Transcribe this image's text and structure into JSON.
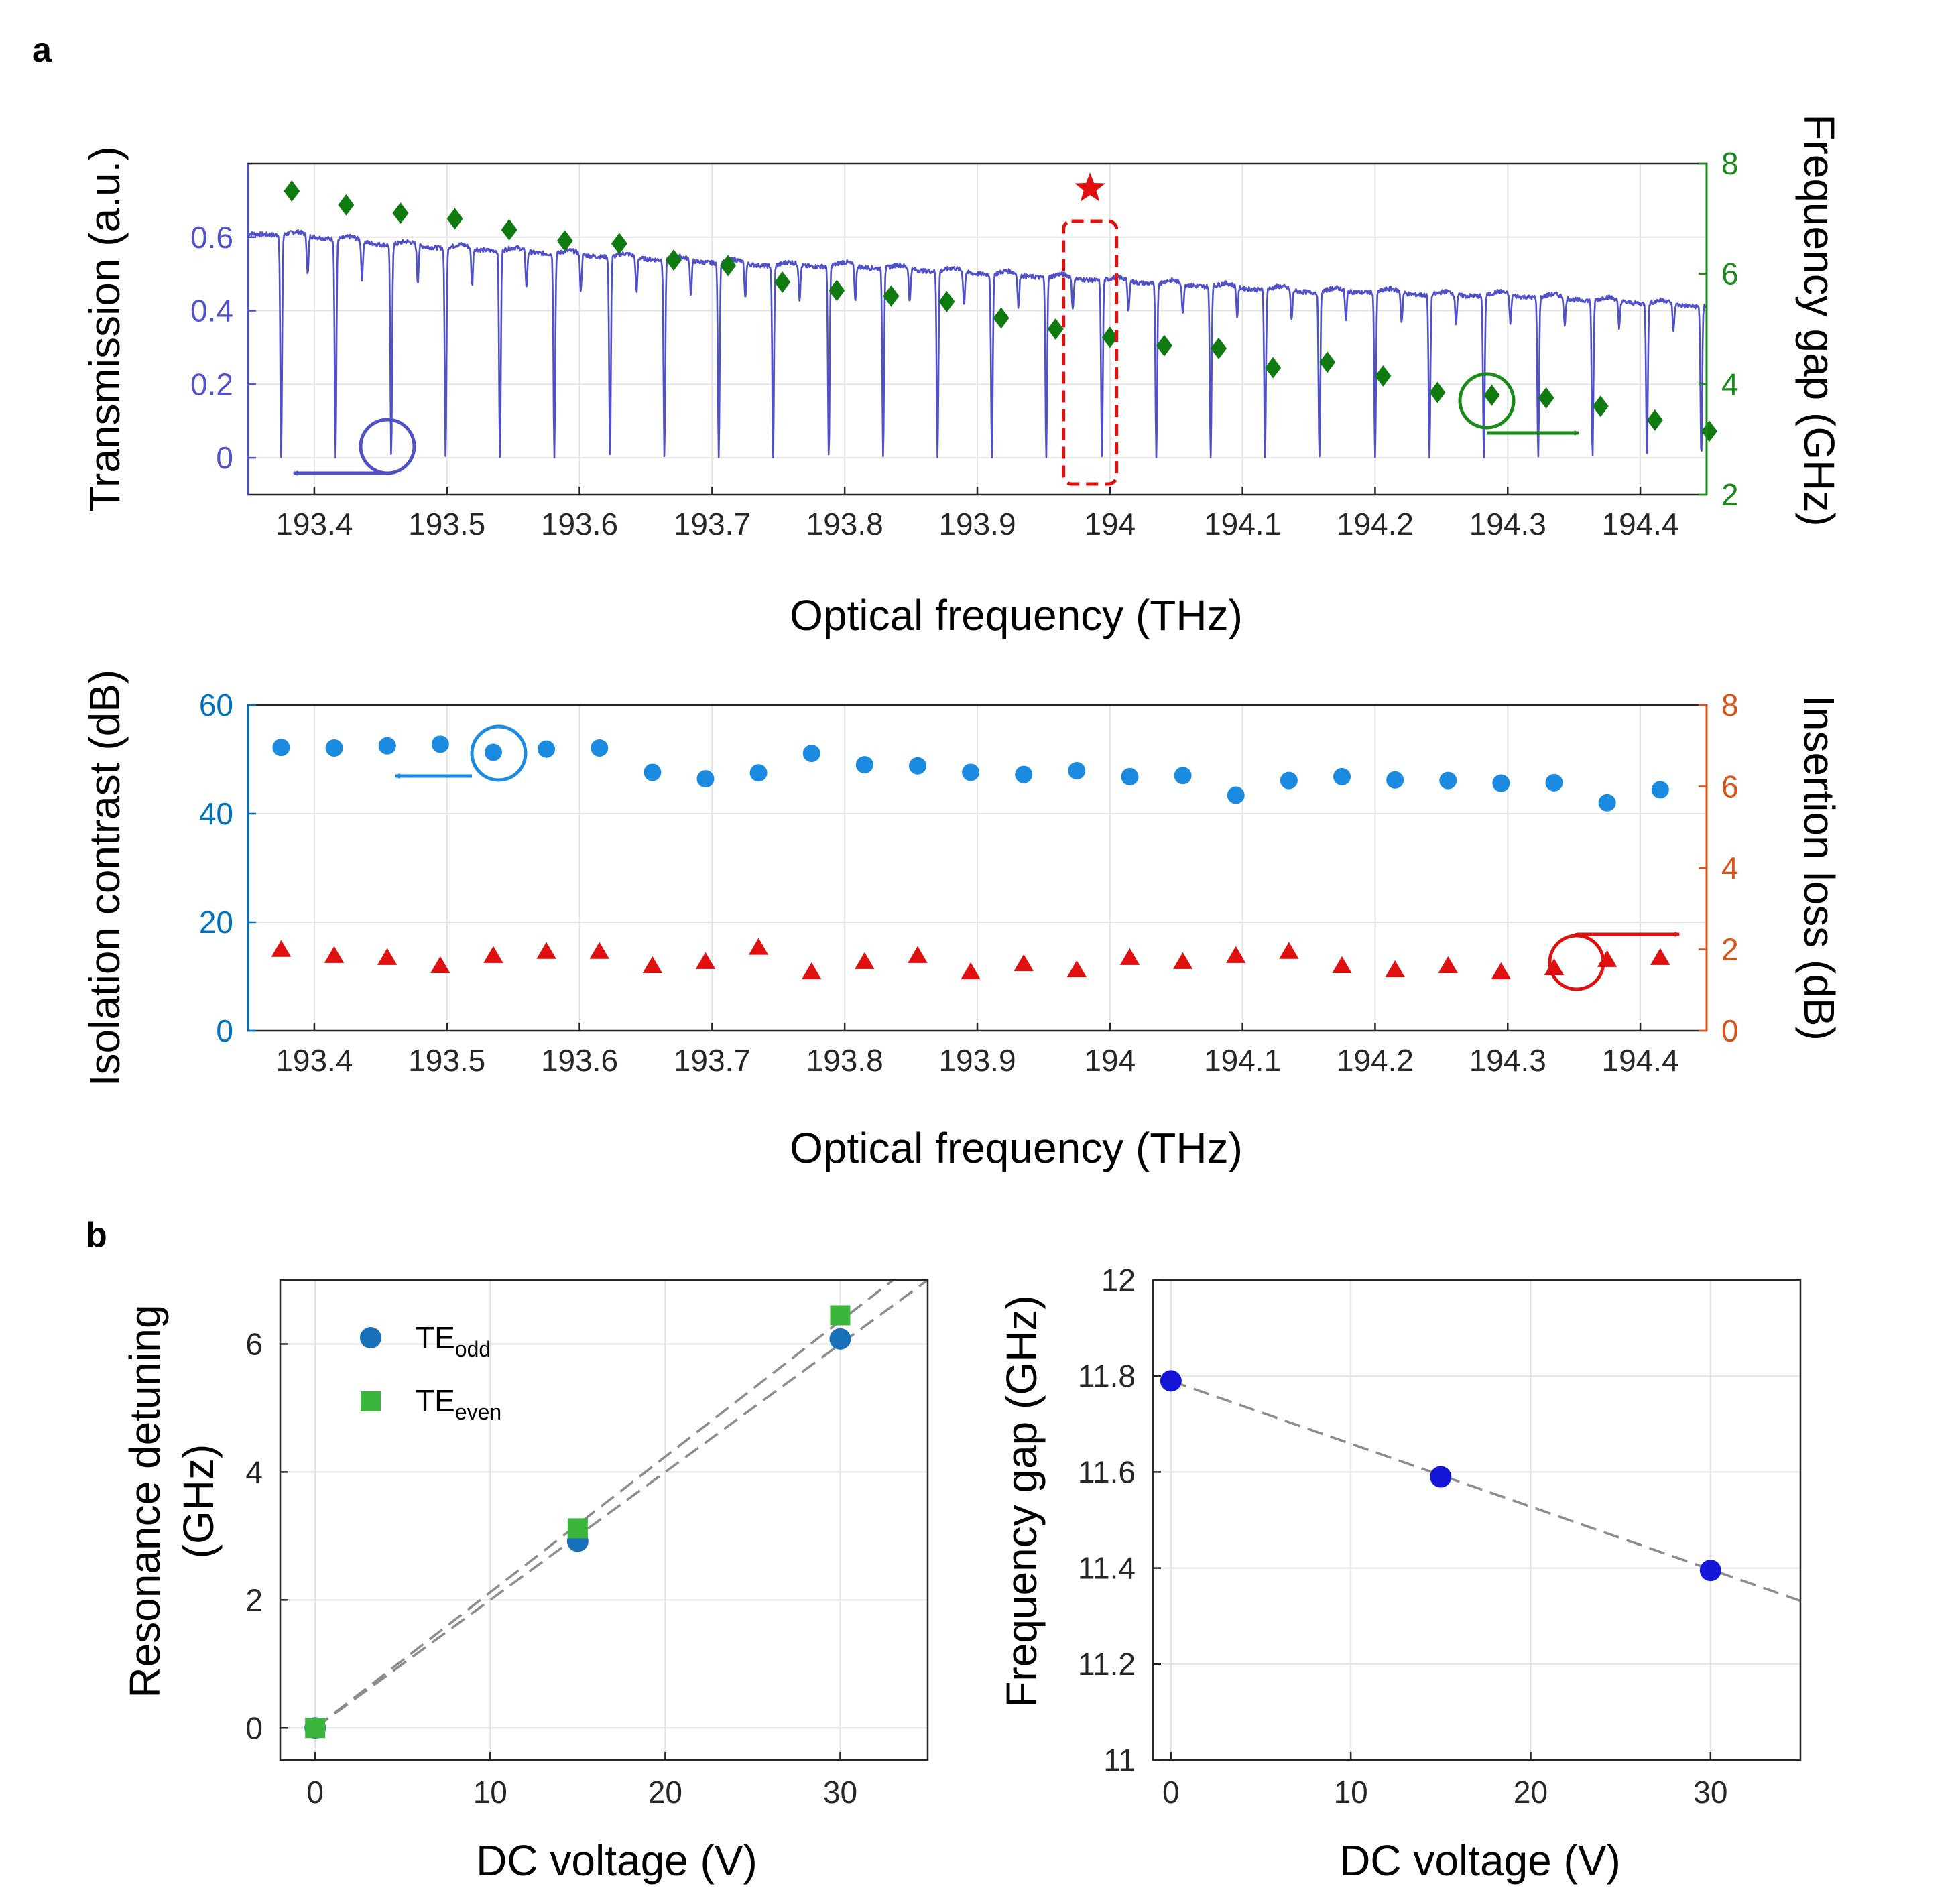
{
  "figure": {
    "panel_a_label": "a",
    "panel_b_label": "b"
  },
  "colors": {
    "transmission": "#5050c8",
    "freq_gap": "#0f7a0f",
    "freq_gap_axis": "#1a8a1a",
    "isolation": "#1a8be0",
    "isolation_axis": "#0072bd",
    "insertion": "#e01010",
    "insertion_axis": "#d95319",
    "te_odd": "#1770b8",
    "te_even": "#3bb53b",
    "gap_b": "#1515d8",
    "fit": "#8c8c8c",
    "star": "#e01010"
  },
  "chart_data": [
    {
      "id": "a-top",
      "type": "line",
      "title": "",
      "xlabel": "Optical frequency (THz)",
      "ylabel_left": "Transmission (a.u.)",
      "ylabel_right": "Frequency gap (GHz)",
      "xlim": [
        193.35,
        194.45
      ],
      "ylim_left": [
        -0.1,
        0.8
      ],
      "ylim_right": [
        2,
        8
      ],
      "xticks": [
        193.4,
        193.5,
        193.6,
        193.7,
        193.8,
        193.9,
        194.0,
        194.1,
        194.2,
        194.3,
        194.4
      ],
      "xtick_labels": [
        "193.4",
        "193.5",
        "193.6",
        "193.7",
        "193.8",
        "193.9",
        "194",
        "194.1",
        "194.2",
        "194.3",
        "194.4"
      ],
      "yticks_left": [
        0,
        0.2,
        0.4,
        0.6
      ],
      "ytick_labels_left": [
        "0",
        "0.2",
        "0.4",
        "0.6"
      ],
      "yticks_right": [
        2,
        4,
        6,
        8
      ],
      "ytick_labels_right": [
        "2",
        "4",
        "6",
        "8"
      ],
      "grid": true,
      "transmission_baseline": {
        "x": [
          193.35,
          193.4,
          193.45,
          193.5,
          193.55,
          193.6,
          193.65,
          193.7,
          193.75,
          193.8,
          193.85,
          193.9,
          193.95,
          194.0,
          194.05,
          194.1,
          194.15,
          194.2,
          194.25,
          194.3,
          194.35,
          194.4,
          194.45
        ],
        "y": [
          0.61,
          0.6,
          0.58,
          0.57,
          0.56,
          0.55,
          0.54,
          0.53,
          0.52,
          0.52,
          0.51,
          0.5,
          0.49,
          0.48,
          0.47,
          0.46,
          0.45,
          0.45,
          0.44,
          0.44,
          0.43,
          0.42,
          0.41
        ]
      },
      "transmission_dips_deep": [
        193.375,
        193.416,
        193.458,
        193.499,
        193.54,
        193.581,
        193.623,
        193.664,
        193.705,
        193.746,
        193.788,
        193.829,
        193.87,
        193.911,
        193.952,
        193.994,
        194.035,
        194.076,
        194.117,
        194.158,
        194.2,
        194.241,
        194.282,
        194.323,
        194.364,
        194.405,
        194.446
      ],
      "transmission_dips_shallow": [
        193.395,
        193.436,
        193.478,
        193.519,
        193.56,
        193.601,
        193.643,
        193.684,
        193.725,
        193.766,
        193.808,
        193.849,
        193.89,
        193.931,
        193.972,
        194.014,
        194.055,
        194.096,
        194.137,
        194.178,
        194.22,
        194.261,
        194.302,
        194.343,
        194.384,
        194.425
      ],
      "freq_gap": {
        "x": [
          193.383,
          193.424,
          193.465,
          193.506,
          193.547,
          193.589,
          193.63,
          193.671,
          193.712,
          193.753,
          193.794,
          193.835,
          193.877,
          193.918,
          193.959,
          194.0,
          194.041,
          194.082,
          194.123,
          194.164,
          194.206,
          194.247,
          194.288,
          194.329,
          194.37,
          194.411,
          194.452
        ],
        "y": [
          7.5,
          7.25,
          7.1,
          7.0,
          6.8,
          6.6,
          6.55,
          6.25,
          6.15,
          5.85,
          5.7,
          5.6,
          5.5,
          5.2,
          5.0,
          4.85,
          4.7,
          4.65,
          4.3,
          4.4,
          4.15,
          3.85,
          3.8,
          3.75,
          3.6,
          3.35,
          3.15
        ]
      },
      "annotations": {
        "star_x": 193.985,
        "star_y": 7.55,
        "box_x": [
          193.965,
          194.005
        ]
      }
    },
    {
      "id": "a-bottom",
      "type": "scatter",
      "xlabel": "Optical frequency (THz)",
      "ylabel_left": "Isolation contrast (dB)",
      "ylabel_right": "Insertion loss (dB)",
      "xlim": [
        193.35,
        194.45
      ],
      "ylim_left": [
        0,
        60
      ],
      "ylim_right": [
        0,
        8
      ],
      "xticks": [
        193.4,
        193.5,
        193.6,
        193.7,
        193.8,
        193.9,
        194.0,
        194.1,
        194.2,
        194.3,
        194.4
      ],
      "xtick_labels": [
        "193.4",
        "193.5",
        "193.6",
        "193.7",
        "193.8",
        "193.9",
        "194",
        "194.1",
        "194.2",
        "194.3",
        "194.4"
      ],
      "yticks_left": [
        0,
        20,
        40,
        60
      ],
      "ytick_labels_left": [
        "0",
        "20",
        "40",
        "60"
      ],
      "yticks_right": [
        0,
        2,
        4,
        6,
        8
      ],
      "ytick_labels_right": [
        "0",
        "2",
        "4",
        "6",
        "8"
      ],
      "grid": true,
      "x": [
        193.375,
        193.415,
        193.455,
        193.495,
        193.535,
        193.575,
        193.615,
        193.655,
        193.695,
        193.735,
        193.775,
        193.815,
        193.855,
        193.895,
        193.935,
        193.975,
        194.015,
        194.055,
        194.095,
        194.135,
        194.175,
        194.215,
        194.255,
        194.295,
        194.335,
        194.375,
        194.415
      ],
      "isolation_contrast": [
        52.2,
        52.1,
        52.5,
        52.8,
        51.3,
        51.9,
        52.1,
        47.6,
        46.4,
        47.5,
        51.1,
        49.0,
        48.8,
        47.6,
        47.2,
        47.9,
        46.8,
        47.0,
        43.4,
        46.1,
        46.8,
        46.2,
        46.1,
        45.6,
        45.7,
        42.0,
        44.4
      ],
      "insertion_loss": [
        2.0,
        1.85,
        1.8,
        1.6,
        1.85,
        1.95,
        1.95,
        1.6,
        1.7,
        2.05,
        1.45,
        1.7,
        1.85,
        1.45,
        1.65,
        1.5,
        1.8,
        1.7,
        1.85,
        1.95,
        1.6,
        1.5,
        1.6,
        1.45,
        1.55,
        1.75,
        1.8
      ]
    },
    {
      "id": "b-left",
      "type": "scatter",
      "xlabel": "DC voltage (V)",
      "ylabel": "Resonance detuning (GHz)",
      "ylabel_line1": "Resonance detuning",
      "ylabel_line2": "(GHz)",
      "xlim": [
        -2,
        35
      ],
      "ylim": [
        -0.5,
        7
      ],
      "xticks": [
        0,
        10,
        20,
        30
      ],
      "xtick_labels": [
        "0",
        "10",
        "20",
        "30"
      ],
      "yticks": [
        0,
        2,
        4,
        6
      ],
      "ytick_labels": [
        "0",
        "2",
        "4",
        "6"
      ],
      "grid": true,
      "series": [
        {
          "name": "TE_odd",
          "label_main": "TE",
          "label_sub": "odd",
          "x": [
            0,
            15,
            30
          ],
          "values": [
            0.0,
            2.92,
            6.08
          ],
          "fit": [
            0.0,
            0.2
          ]
        },
        {
          "name": "TE_even",
          "label_main": "TE",
          "label_sub": "even",
          "x": [
            0,
            15,
            30
          ],
          "values": [
            0.0,
            3.12,
            6.45
          ],
          "fit": [
            0.0,
            0.212
          ]
        }
      ]
    },
    {
      "id": "b-right",
      "type": "scatter",
      "xlabel": "DC voltage (V)",
      "ylabel": "Frequency gap (GHz)",
      "xlim": [
        -1,
        35
      ],
      "ylim": [
        11,
        12
      ],
      "xticks": [
        0,
        10,
        20,
        30
      ],
      "xtick_labels": [
        "0",
        "10",
        "20",
        "30"
      ],
      "yticks": [
        11,
        11.2,
        11.4,
        11.6,
        11.8,
        12
      ],
      "ytick_labels": [
        "11",
        "11.2",
        "11.4",
        "11.6",
        "11.8",
        "12"
      ],
      "grid": true,
      "x": [
        0,
        15,
        30
      ],
      "values": [
        11.79,
        11.59,
        11.395
      ],
      "fit": [
        11.79,
        -0.0131
      ]
    }
  ]
}
